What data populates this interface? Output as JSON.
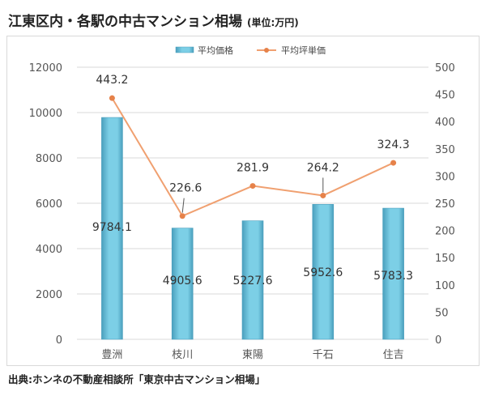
{
  "header": {
    "title": "江東区内・各駅の中古マンション相場",
    "unit": "(単位:万円)"
  },
  "footer": {
    "source": "出典:ホンネの不動産相談所「東京中古マンション相場」"
  },
  "colors": {
    "bar": "#7ccfe6",
    "bar_edge": "#4a9fbd",
    "line": "#f0a070",
    "marker": "#e6824a",
    "grid": "#d9d9d9"
  },
  "chart_data": {
    "type": "bar+line",
    "categories": [
      "豊洲",
      "枝川",
      "東陽",
      "千石",
      "住吉"
    ],
    "series": [
      {
        "name": "平均価格",
        "type": "bar",
        "axis": "left",
        "values": [
          9784.1,
          4905.6,
          5227.6,
          5952.6,
          5783.3
        ],
        "labels": [
          "9784.1",
          "4905.6",
          "5227.6",
          "5952.6",
          "5783.3"
        ]
      },
      {
        "name": "平均坪単価",
        "type": "line",
        "axis": "right",
        "values": [
          443.2,
          226.6,
          281.9,
          264.2,
          324.3
        ],
        "labels": [
          "443.2",
          "226.6",
          "281.9",
          "264.2",
          "324.3"
        ]
      }
    ],
    "y_left": {
      "min": 0,
      "max": 12000,
      "ticks": [
        0,
        2000,
        4000,
        6000,
        8000,
        10000,
        12000
      ],
      "tick_labels": [
        "0",
        "2000",
        "4000",
        "6000",
        "8000",
        "10000",
        "12000"
      ]
    },
    "y_right": {
      "min": 0,
      "max": 500,
      "ticks": [
        0,
        50,
        100,
        150,
        200,
        250,
        300,
        350,
        400,
        450,
        500
      ],
      "tick_labels": [
        "0",
        "50",
        "100",
        "150",
        "200",
        "250",
        "300",
        "350",
        "400",
        "450",
        "500"
      ]
    },
    "grid": true,
    "legend_position": "top-center"
  }
}
